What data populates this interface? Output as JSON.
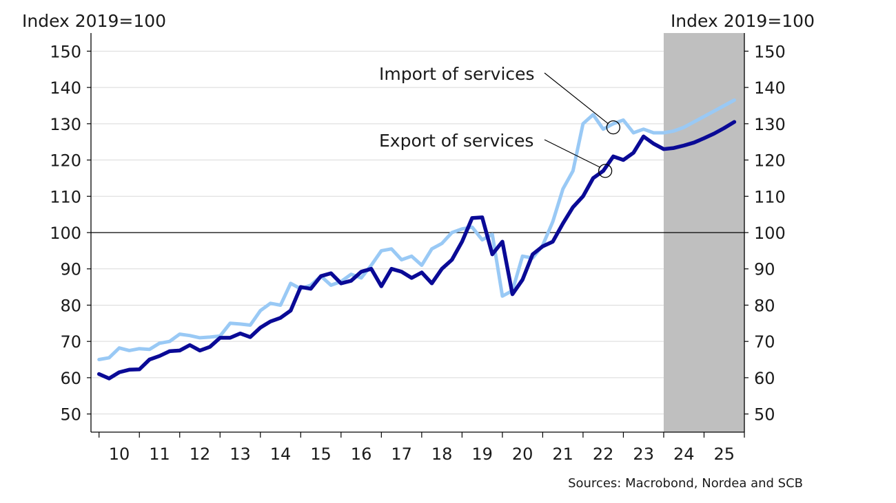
{
  "chart_data": {
    "type": "line",
    "y_unit_left": "Index 2019=100",
    "y_unit_right": "Index 2019=100",
    "source": "Sources: Macrobond, Nordea and SCB",
    "ylim": [
      45,
      155
    ],
    "yticks": [
      50,
      60,
      70,
      80,
      90,
      100,
      110,
      120,
      130,
      140,
      150
    ],
    "reference_line": 100,
    "x_range": [
      2009.8,
      2026.0
    ],
    "year_ticks": [
      "10",
      "11",
      "12",
      "13",
      "14",
      "15",
      "16",
      "17",
      "18",
      "19",
      "20",
      "21",
      "22",
      "23",
      "24",
      "25"
    ],
    "forecast_shading": {
      "from": 2024.0,
      "to": 2026.0,
      "color": "#bfbfbf"
    },
    "series": [
      {
        "name": "Import of services",
        "color": "#99c9f5",
        "x": [
          2010.0,
          2010.25,
          2010.5,
          2010.75,
          2011.0,
          2011.25,
          2011.5,
          2011.75,
          2012.0,
          2012.25,
          2012.5,
          2012.75,
          2013.0,
          2013.25,
          2013.5,
          2013.75,
          2014.0,
          2014.25,
          2014.5,
          2014.75,
          2015.0,
          2015.25,
          2015.5,
          2015.75,
          2016.0,
          2016.25,
          2016.5,
          2016.75,
          2017.0,
          2017.25,
          2017.5,
          2017.75,
          2018.0,
          2018.25,
          2018.5,
          2018.75,
          2019.0,
          2019.25,
          2019.5,
          2019.75,
          2020.0,
          2020.25,
          2020.5,
          2020.75,
          2021.0,
          2021.25,
          2021.5,
          2021.75,
          2022.0,
          2022.25,
          2022.5,
          2022.75,
          2023.0,
          2023.25,
          2023.5,
          2023.75,
          2024.0,
          2024.25,
          2024.5,
          2024.75,
          2025.0,
          2025.25,
          2025.5,
          2025.75
        ],
        "values": [
          65.0,
          65.5,
          68.2,
          67.5,
          68.0,
          67.8,
          69.5,
          70.0,
          72.0,
          71.6,
          71.0,
          71.2,
          71.5,
          75.0,
          74.8,
          74.5,
          78.5,
          80.5,
          80.0,
          86.0,
          84.5,
          85.5,
          88.0,
          85.5,
          86.5,
          88.5,
          87.5,
          91.0,
          95.0,
          95.5,
          92.5,
          93.5,
          91.0,
          95.5,
          97.0,
          100.0,
          101.0,
          101.5,
          98.0,
          99.5,
          82.5,
          84.0,
          93.5,
          93.0,
          96.5,
          103.0,
          112.0,
          117.0,
          130.0,
          132.5,
          128.5,
          130.0,
          131.0,
          127.5,
          128.5,
          127.5,
          127.5,
          128.0,
          129.0,
          130.5,
          132.0,
          133.5,
          135.0,
          136.5
        ]
      },
      {
        "name": "Export of services",
        "color": "#0a0a96",
        "x": [
          2010.0,
          2010.25,
          2010.5,
          2010.75,
          2011.0,
          2011.25,
          2011.5,
          2011.75,
          2012.0,
          2012.25,
          2012.5,
          2012.75,
          2013.0,
          2013.25,
          2013.5,
          2013.75,
          2014.0,
          2014.25,
          2014.5,
          2014.75,
          2015.0,
          2015.25,
          2015.5,
          2015.75,
          2016.0,
          2016.25,
          2016.5,
          2016.75,
          2017.0,
          2017.25,
          2017.5,
          2017.75,
          2018.0,
          2018.25,
          2018.5,
          2018.75,
          2019.0,
          2019.25,
          2019.5,
          2019.75,
          2020.0,
          2020.25,
          2020.5,
          2020.75,
          2021.0,
          2021.25,
          2021.5,
          2021.75,
          2022.0,
          2022.25,
          2022.5,
          2022.75,
          2023.0,
          2023.25,
          2023.5,
          2023.75,
          2024.0,
          2024.25,
          2024.5,
          2024.75,
          2025.0,
          2025.25,
          2025.5,
          2025.75
        ],
        "values": [
          61.0,
          59.8,
          61.5,
          62.2,
          62.3,
          65.0,
          66.0,
          67.3,
          67.5,
          69.0,
          67.5,
          68.5,
          71.0,
          71.0,
          72.2,
          71.2,
          73.8,
          75.5,
          76.5,
          78.5,
          85.0,
          84.5,
          88.0,
          88.8,
          86.0,
          86.7,
          89.2,
          90.0,
          85.2,
          90.0,
          89.2,
          87.5,
          89.0,
          86.0,
          90.0,
          92.5,
          97.5,
          104.0,
          104.2,
          94.0,
          97.5,
          83.0,
          87.0,
          94.0,
          96.2,
          97.5,
          102.5,
          107.0,
          110.0,
          115.0,
          117.0,
          121.0,
          120.0,
          122.0,
          126.5,
          124.5,
          123.0,
          123.3,
          124.0,
          124.8,
          126.0,
          127.3,
          128.8,
          130.5
        ]
      }
    ],
    "annotations": [
      {
        "text": "Import of services",
        "series": "Import of services",
        "at_x": 2022.75,
        "at_y": 129.0
      },
      {
        "text": "Export of services",
        "series": "Export of services",
        "at_x": 2022.55,
        "at_y": 117.0
      }
    ]
  }
}
